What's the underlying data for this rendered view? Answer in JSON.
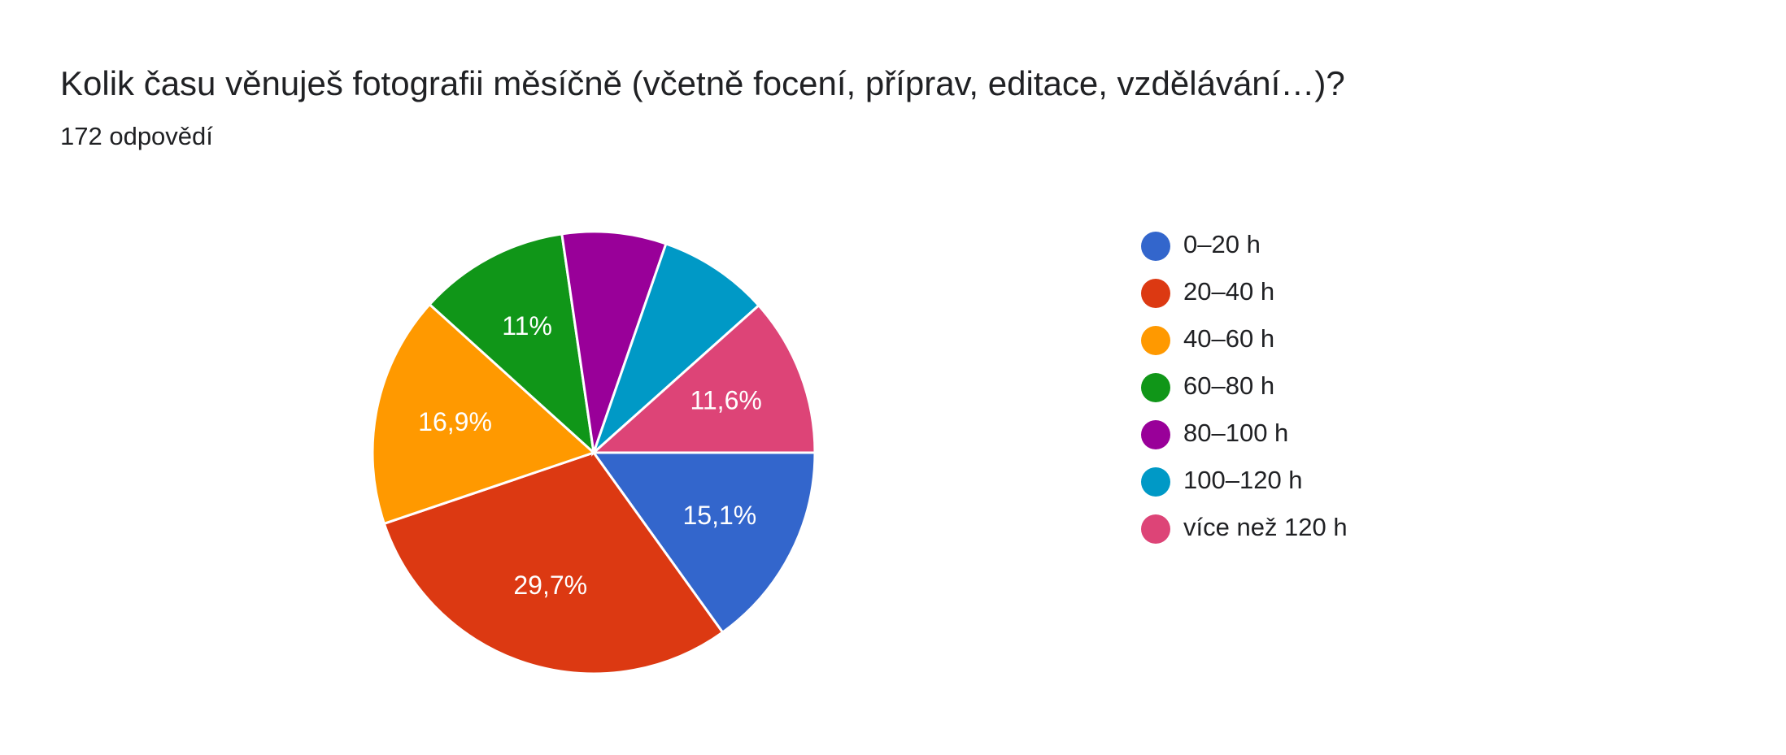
{
  "chart_data": {
    "type": "pie",
    "title": "Kolik času věnuješ fotografii měsíčně (včetně focení, příprav, editace, vzdělávání…)?",
    "subtitle": "172 odpovědí",
    "categories": [
      "0–20 h",
      "20–40 h",
      "40–60 h",
      "60–80 h",
      "80–100 h",
      "100–120 h",
      "více než 120 h"
    ],
    "values": [
      15.1,
      29.7,
      16.9,
      11,
      7.6,
      8.1,
      11.6
    ],
    "value_labels": [
      "15,1%",
      "29,7%",
      "16,9%",
      "11%",
      null,
      null,
      "11,6%"
    ],
    "colors": [
      "#3366cc",
      "#dc3912",
      "#ff9900",
      "#109618",
      "#990099",
      "#0099c6",
      "#dd4477"
    ],
    "legend": "right"
  }
}
